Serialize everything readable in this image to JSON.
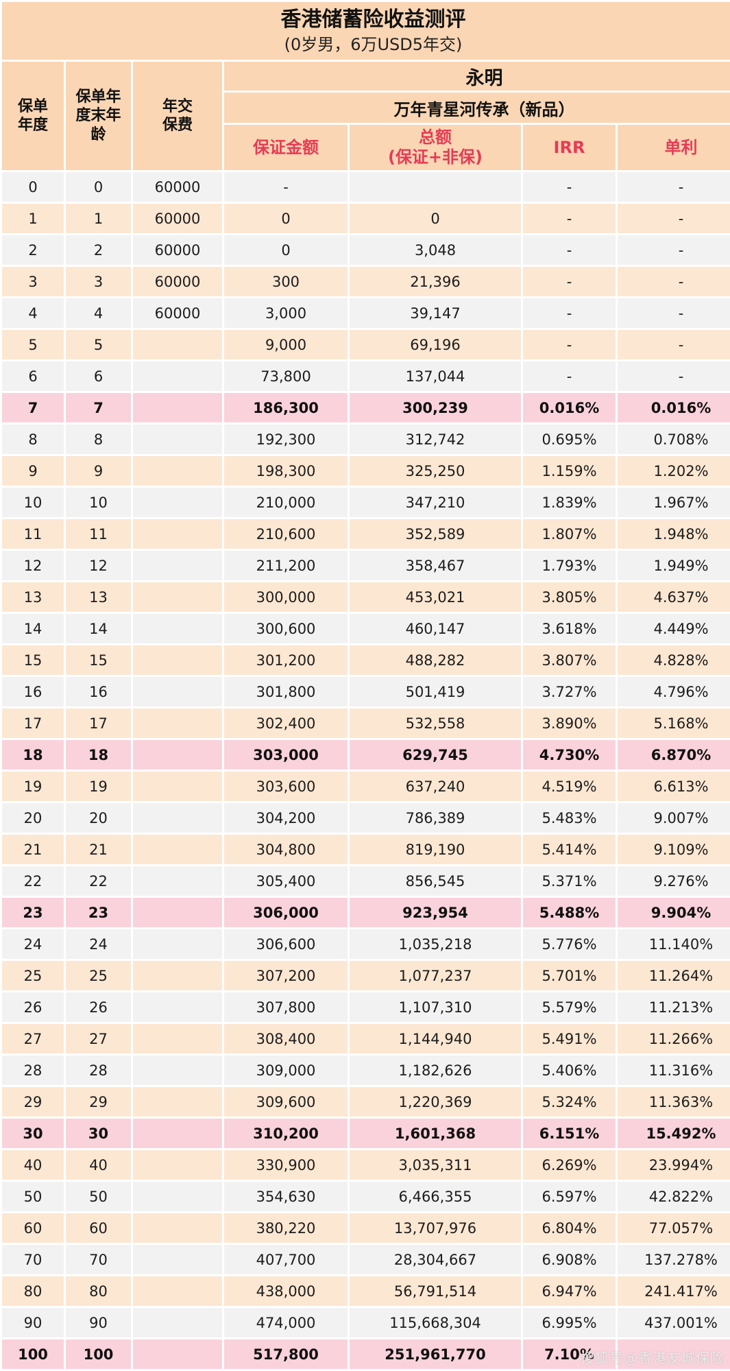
{
  "title": "香港储蓄险收益测评",
  "subtitle": "(0岁男，6万USD5年交)",
  "header": {
    "policy_year": "保单\n年度",
    "age": "保单年\n度末年\n龄",
    "premium": "年交\n保费",
    "company": "永明",
    "product": "万年青星河传承（新品）",
    "guaranteed": "保证金额",
    "total": "总额\n(保证+非保)",
    "irr": "IRR",
    "simple": "单利"
  },
  "watermark": "搜狐号@香港友城保险",
  "colors": {
    "header_bg": "#FAD6B4",
    "header_accent_text": "#E73B55",
    "row_gray": "#F2F2F2",
    "row_peach": "#FCE7D2",
    "row_highlight": "#FAD2DC"
  },
  "chart_data": {
    "type": "table",
    "title": "香港储蓄险收益测评 (0岁男，6万USD5年交) — 永明 万年青星河传承（新品）",
    "columns": [
      "保单年度",
      "保单年度末年龄",
      "年交保费",
      "保证金额",
      "总额(保证+非保)",
      "IRR",
      "单利"
    ],
    "rows": [
      {
        "year": "0",
        "age": "0",
        "premium": "60000",
        "guaranteed": "-",
        "total": "",
        "irr": "-",
        "simple": "-",
        "highlight": false
      },
      {
        "year": "1",
        "age": "1",
        "premium": "60000",
        "guaranteed": "0",
        "total": "0",
        "irr": "-",
        "simple": "-",
        "highlight": false
      },
      {
        "year": "2",
        "age": "2",
        "premium": "60000",
        "guaranteed": "0",
        "total": "3,048",
        "irr": "-",
        "simple": "-",
        "highlight": false
      },
      {
        "year": "3",
        "age": "3",
        "premium": "60000",
        "guaranteed": "300",
        "total": "21,396",
        "irr": "-",
        "simple": "-",
        "highlight": false
      },
      {
        "year": "4",
        "age": "4",
        "premium": "60000",
        "guaranteed": "3,000",
        "total": "39,147",
        "irr": "-",
        "simple": "-",
        "highlight": false
      },
      {
        "year": "5",
        "age": "5",
        "premium": "",
        "guaranteed": "9,000",
        "total": "69,196",
        "irr": "-",
        "simple": "-",
        "highlight": false
      },
      {
        "year": "6",
        "age": "6",
        "premium": "",
        "guaranteed": "73,800",
        "total": "137,044",
        "irr": "-",
        "simple": "-",
        "highlight": false
      },
      {
        "year": "7",
        "age": "7",
        "premium": "",
        "guaranteed": "186,300",
        "total": "300,239",
        "irr": "0.016%",
        "simple": "0.016%",
        "highlight": true
      },
      {
        "year": "8",
        "age": "8",
        "premium": "",
        "guaranteed": "192,300",
        "total": "312,742",
        "irr": "0.695%",
        "simple": "0.708%",
        "highlight": false
      },
      {
        "year": "9",
        "age": "9",
        "premium": "",
        "guaranteed": "198,300",
        "total": "325,250",
        "irr": "1.159%",
        "simple": "1.202%",
        "highlight": false
      },
      {
        "year": "10",
        "age": "10",
        "premium": "",
        "guaranteed": "210,000",
        "total": "347,210",
        "irr": "1.839%",
        "simple": "1.967%",
        "highlight": false
      },
      {
        "year": "11",
        "age": "11",
        "premium": "",
        "guaranteed": "210,600",
        "total": "352,589",
        "irr": "1.807%",
        "simple": "1.948%",
        "highlight": false
      },
      {
        "year": "12",
        "age": "12",
        "premium": "",
        "guaranteed": "211,200",
        "total": "358,467",
        "irr": "1.793%",
        "simple": "1.949%",
        "highlight": false
      },
      {
        "year": "13",
        "age": "13",
        "premium": "",
        "guaranteed": "300,000",
        "total": "453,021",
        "irr": "3.805%",
        "simple": "4.637%",
        "highlight": false
      },
      {
        "year": "14",
        "age": "14",
        "premium": "",
        "guaranteed": "300,600",
        "total": "460,147",
        "irr": "3.618%",
        "simple": "4.449%",
        "highlight": false
      },
      {
        "year": "15",
        "age": "15",
        "premium": "",
        "guaranteed": "301,200",
        "total": "488,282",
        "irr": "3.807%",
        "simple": "4.828%",
        "highlight": false
      },
      {
        "year": "16",
        "age": "16",
        "premium": "",
        "guaranteed": "301,800",
        "total": "501,419",
        "irr": "3.727%",
        "simple": "4.796%",
        "highlight": false
      },
      {
        "year": "17",
        "age": "17",
        "premium": "",
        "guaranteed": "302,400",
        "total": "532,558",
        "irr": "3.890%",
        "simple": "5.168%",
        "highlight": false
      },
      {
        "year": "18",
        "age": "18",
        "premium": "",
        "guaranteed": "303,000",
        "total": "629,745",
        "irr": "4.730%",
        "simple": "6.870%",
        "highlight": true
      },
      {
        "year": "19",
        "age": "19",
        "premium": "",
        "guaranteed": "303,600",
        "total": "637,240",
        "irr": "4.519%",
        "simple": "6.613%",
        "highlight": false
      },
      {
        "year": "20",
        "age": "20",
        "premium": "",
        "guaranteed": "304,200",
        "total": "786,389",
        "irr": "5.483%",
        "simple": "9.007%",
        "highlight": false
      },
      {
        "year": "21",
        "age": "21",
        "premium": "",
        "guaranteed": "304,800",
        "total": "819,190",
        "irr": "5.414%",
        "simple": "9.109%",
        "highlight": false
      },
      {
        "year": "22",
        "age": "22",
        "premium": "",
        "guaranteed": "305,400",
        "total": "856,545",
        "irr": "5.371%",
        "simple": "9.276%",
        "highlight": false
      },
      {
        "year": "23",
        "age": "23",
        "premium": "",
        "guaranteed": "306,000",
        "total": "923,954",
        "irr": "5.488%",
        "simple": "9.904%",
        "highlight": true
      },
      {
        "year": "24",
        "age": "24",
        "premium": "",
        "guaranteed": "306,600",
        "total": "1,035,218",
        "irr": "5.776%",
        "simple": "11.140%",
        "highlight": false
      },
      {
        "year": "25",
        "age": "25",
        "premium": "",
        "guaranteed": "307,200",
        "total": "1,077,237",
        "irr": "5.701%",
        "simple": "11.264%",
        "highlight": false
      },
      {
        "year": "26",
        "age": "26",
        "premium": "",
        "guaranteed": "307,800",
        "total": "1,107,310",
        "irr": "5.579%",
        "simple": "11.213%",
        "highlight": false
      },
      {
        "year": "27",
        "age": "27",
        "premium": "",
        "guaranteed": "308,400",
        "total": "1,144,940",
        "irr": "5.491%",
        "simple": "11.266%",
        "highlight": false
      },
      {
        "year": "28",
        "age": "28",
        "premium": "",
        "guaranteed": "309,000",
        "total": "1,182,626",
        "irr": "5.406%",
        "simple": "11.316%",
        "highlight": false
      },
      {
        "year": "29",
        "age": "29",
        "premium": "",
        "guaranteed": "309,600",
        "total": "1,220,369",
        "irr": "5.324%",
        "simple": "11.363%",
        "highlight": false
      },
      {
        "year": "30",
        "age": "30",
        "premium": "",
        "guaranteed": "310,200",
        "total": "1,601,368",
        "irr": "6.151%",
        "simple": "15.492%",
        "highlight": true
      },
      {
        "year": "40",
        "age": "40",
        "premium": "",
        "guaranteed": "330,900",
        "total": "3,035,311",
        "irr": "6.269%",
        "simple": "23.994%",
        "highlight": false
      },
      {
        "year": "50",
        "age": "50",
        "premium": "",
        "guaranteed": "354,630",
        "total": "6,466,355",
        "irr": "6.597%",
        "simple": "42.822%",
        "highlight": false
      },
      {
        "year": "60",
        "age": "60",
        "premium": "",
        "guaranteed": "380,220",
        "total": "13,707,976",
        "irr": "6.804%",
        "simple": "77.057%",
        "highlight": false
      },
      {
        "year": "70",
        "age": "70",
        "premium": "",
        "guaranteed": "407,700",
        "total": "28,304,667",
        "irr": "6.908%",
        "simple": "137.278%",
        "highlight": false
      },
      {
        "year": "80",
        "age": "80",
        "premium": "",
        "guaranteed": "438,000",
        "total": "56,791,514",
        "irr": "6.947%",
        "simple": "241.417%",
        "highlight": false
      },
      {
        "year": "90",
        "age": "90",
        "premium": "",
        "guaranteed": "474,000",
        "total": "115,668,304",
        "irr": "6.995%",
        "simple": "437.001%",
        "highlight": false
      },
      {
        "year": "100",
        "age": "100",
        "premium": "",
        "guaranteed": "517,800",
        "total": "251,961,770",
        "irr": "7.10%",
        "simple": "",
        "highlight": true
      }
    ]
  }
}
